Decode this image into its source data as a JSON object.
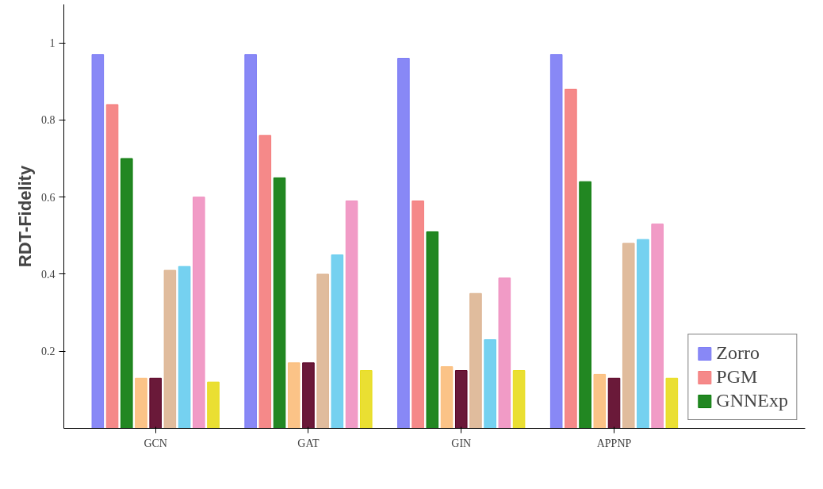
{
  "chart_data": {
    "type": "bar",
    "ylabel": "RDT-Fidelity",
    "categories": [
      "GCN",
      "GAT",
      "GIN",
      "APPNP"
    ],
    "series": [
      {
        "name": "Zorro",
        "color": "#7b7bf5",
        "values": [
          0.97,
          0.97,
          0.96,
          0.97
        ]
      },
      {
        "name": "PGM",
        "color": "#f47c7c",
        "values": [
          0.84,
          0.76,
          0.59,
          0.88
        ]
      },
      {
        "name": "GNNExp",
        "color": "#0a7a0a",
        "values": [
          0.7,
          0.65,
          0.51,
          0.64
        ]
      },
      {
        "color": "#fbbd7a",
        "values": [
          0.13,
          0.17,
          0.16,
          0.14
        ]
      },
      {
        "color": "#5a0023",
        "values": [
          0.13,
          0.17,
          0.15,
          0.13
        ]
      },
      {
        "color": "#ddb592",
        "values": [
          0.41,
          0.4,
          0.35,
          0.48
        ]
      },
      {
        "color": "#66ccee",
        "values": [
          0.42,
          0.45,
          0.23,
          0.49
        ]
      },
      {
        "color": "#ef90c0",
        "values": [
          0.6,
          0.59,
          0.39,
          0.53
        ]
      },
      {
        "color": "#e8dc1c",
        "values": [
          0.12,
          0.15,
          0.15,
          0.13
        ]
      }
    ],
    "ylim": [
      0,
      1.1
    ],
    "yticks": [
      0.2,
      0.4,
      0.6,
      0.8,
      1
    ],
    "grid": false,
    "legend": "bottom right"
  }
}
